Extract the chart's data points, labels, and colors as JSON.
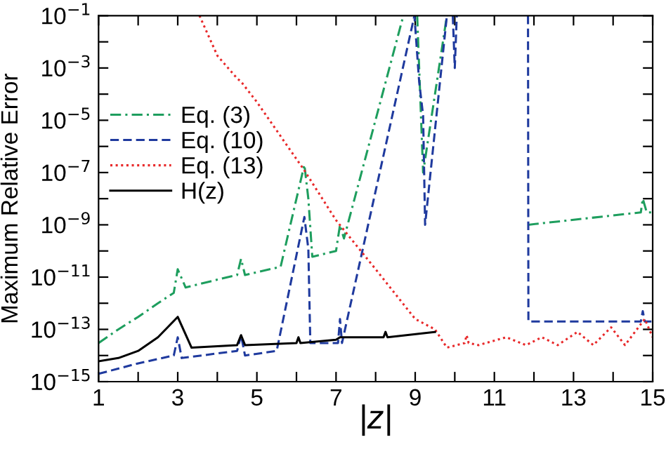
{
  "chart_data": {
    "type": "line",
    "xlabel": "|z|",
    "ylabel": "Maximum Relative Error",
    "log": "y",
    "grid": false,
    "legend": "left",
    "marker": "none",
    "xlim": [
      1,
      15
    ],
    "ylim": [
      1e-15,
      0.1
    ],
    "xticks": [
      1,
      {
        "value": 2,
        "label": null
      },
      3,
      {
        "value": 4,
        "label": null
      },
      5,
      {
        "value": 6,
        "label": null
      },
      7,
      {
        "value": 8,
        "label": null
      },
      9,
      {
        "value": 10,
        "label": null
      },
      11,
      {
        "value": 12,
        "label": null
      },
      13,
      {
        "value": 14,
        "label": null
      },
      15
    ],
    "yticks": [
      {
        "value": 1e-15,
        "label": "10$^{−15}$"
      },
      {
        "value": 1e-14,
        "label": null
      },
      {
        "value": 1e-13,
        "label": "10$^{−13}$"
      },
      {
        "value": 1e-12,
        "label": null
      },
      {
        "value": 1e-11,
        "label": "10$^{−11}$"
      },
      {
        "value": 1e-10,
        "label": null
      },
      {
        "value": 1e-09,
        "label": "10$^{−9}$"
      },
      {
        "value": 1e-08,
        "label": null
      },
      {
        "value": 1e-07,
        "label": "10$^{−7}$"
      },
      {
        "value": 1e-06,
        "label": null
      },
      {
        "value": 1e-05,
        "label": "10$^{−5}$"
      },
      {
        "value": 0.0001,
        "label": null
      },
      {
        "value": 0.001,
        "label": "10$^{−3}$"
      },
      {
        "value": 0.01,
        "label": null
      },
      {
        "value": 0.1,
        "label": "10$^{−1}$"
      }
    ],
    "series": [
      {
        "name": "Eq. (3)",
        "color": "#1e9e5e",
        "line_style": "dashdot",
        "x": [
          1,
          1.5,
          2,
          2.5,
          2.9,
          3.0,
          3.2,
          4.0,
          4.5,
          4.6,
          4.7,
          5.6,
          6.2,
          6.3,
          6.4,
          7.0,
          7.1,
          7.2,
          8.7,
          8.9,
          9.05,
          9.2,
          9.8,
          10.9,
          11.85,
          14.7,
          14.75,
          14.85,
          15
        ],
        "values": [
          3e-14,
          1e-13,
          3e-13,
          1e-12,
          2.5e-12,
          2e-11,
          4e-12,
          8e-12,
          1.2e-11,
          5e-11,
          1.2e-11,
          2.5e-11,
          2e-07,
          1e-08,
          6e-11,
          1e-10,
          1e-09,
          3e-10,
          0.1,
          null,
          0.1,
          1e-07,
          0.1,
          null,
          1e-09,
          3e-09,
          1e-08,
          3e-09,
          3e-09
        ]
      },
      {
        "name": "Eq. (10)",
        "color": "#1f3a9e",
        "line_style": "dashed",
        "x": [
          1,
          2,
          2.9,
          3.0,
          3.1,
          4.5,
          4.6,
          4.7,
          5.5,
          6.2,
          6.3,
          6.35,
          7.05,
          7.1,
          7.15,
          8.98,
          9.1,
          9.2,
          9.25,
          9.8,
          9.9,
          9.95,
          10.0,
          10.05,
          11.0,
          11.85,
          11.86,
          14.7,
          14.75,
          14.8,
          15
        ],
        "values": [
          2e-15,
          5e-15,
          1e-14,
          5e-14,
          8e-15,
          1.5e-14,
          6e-14,
          1e-14,
          1.5e-14,
          2e-09,
          1.2e-10,
          3e-14,
          3e-14,
          2.5e-13,
          3e-14,
          0.1,
          0.0003,
          1.5e-05,
          1e-09,
          0.1,
          null,
          0.1,
          0.001,
          0.1,
          null,
          0.1,
          2e-13,
          2e-13,
          5e-13,
          2e-13,
          2e-13
        ]
      },
      {
        "name": "Eq. (13)",
        "color": "#e8292a",
        "line_style": "dotted",
        "x": [
          3.55,
          4.0,
          4.5,
          4.6,
          5.0,
          6.2,
          7.0,
          8.0,
          9.0,
          9.5,
          9.8,
          10.25,
          10.3,
          10.35,
          10.6,
          11.3,
          11.8,
          12.2,
          12.6,
          13.1,
          13.5,
          13.95,
          14.3,
          14.8,
          15
        ],
        "values": [
          0.1,
          0.003,
          0.0004,
          0.0003,
          5e-05,
          1.2e-07,
          1.5e-09,
          2e-11,
          2.5e-13,
          1e-13,
          2e-14,
          3e-14,
          6e-14,
          3e-14,
          2.5e-14,
          5e-14,
          2.5e-14,
          5e-14,
          2.5e-14,
          8e-14,
          2.5e-14,
          1.2e-13,
          2.5e-14,
          2.5e-13,
          5e-14
        ]
      },
      {
        "name": "H(z)",
        "color": "#000000",
        "line_style": "solid",
        "x": [
          1,
          1.5,
          2,
          2.5,
          3.0,
          3.35,
          4.5,
          4.6,
          4.7,
          6.0,
          6.05,
          6.1,
          7.0,
          7.1,
          8.2,
          8.25,
          8.3,
          9.5
        ],
        "values": [
          6e-15,
          8e-15,
          1.5e-14,
          5e-14,
          3e-13,
          2e-14,
          2.5e-14,
          6e-14,
          2.5e-14,
          3e-14,
          5e-14,
          3e-14,
          4e-14,
          5e-14,
          5e-14,
          8e-14,
          5e-14,
          8e-14
        ]
      }
    ]
  }
}
